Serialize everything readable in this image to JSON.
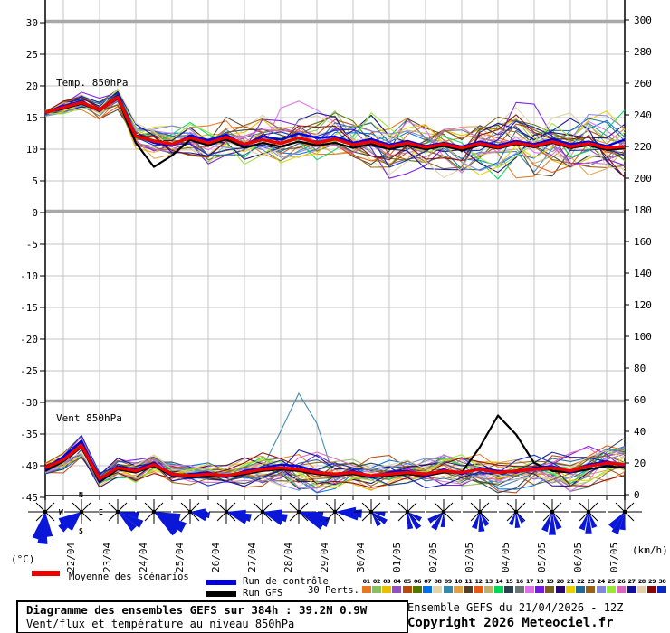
{
  "legend": {
    "mean_label": "Moyenne des scénarios",
    "control_label": "Run de contrôle",
    "gfs_label": "Run GFS",
    "perts_label": "30 Perts.",
    "members": [
      {
        "id": "01",
        "color": "#e87820"
      },
      {
        "id": "02",
        "color": "#88c060"
      },
      {
        "id": "03",
        "color": "#e8c000"
      },
      {
        "id": "04",
        "color": "#9050c0"
      },
      {
        "id": "05",
        "color": "#b84810"
      },
      {
        "id": "06",
        "color": "#507800"
      },
      {
        "id": "07",
        "color": "#0070e8"
      },
      {
        "id": "08",
        "color": "#e0d4a8"
      },
      {
        "id": "09",
        "color": "#3888a8"
      },
      {
        "id": "10",
        "color": "#e0a048"
      },
      {
        "id": "11",
        "color": "#504028"
      },
      {
        "id": "12",
        "color": "#e85810"
      },
      {
        "id": "13",
        "color": "#c0b070"
      },
      {
        "id": "14",
        "color": "#00d858"
      },
      {
        "id": "15",
        "color": "#2a4050"
      },
      {
        "id": "16",
        "color": "#687870"
      },
      {
        "id": "17",
        "color": "#e070e8"
      },
      {
        "id": "18",
        "color": "#7818e8"
      },
      {
        "id": "19",
        "color": "#786020"
      },
      {
        "id": "20",
        "color": "#280870"
      },
      {
        "id": "21",
        "color": "#e8d000"
      },
      {
        "id": "22",
        "color": "#206898"
      },
      {
        "id": "23",
        "color": "#986018"
      },
      {
        "id": "24",
        "color": "#8088e0"
      },
      {
        "id": "25",
        "color": "#98e838"
      },
      {
        "id": "26",
        "color": "#d868c0"
      },
      {
        "id": "27",
        "color": "#101098"
      },
      {
        "id": "28",
        "color": "#e0d0a8"
      },
      {
        "id": "29",
        "color": "#880808"
      },
      {
        "id": "30",
        "color": "#0828c0"
      }
    ]
  },
  "title_box": {
    "line1": "Diagramme des ensembles GEFS sur 384h : 39.2N 0.9W",
    "line2": "Vent/flux et température au niveau 850hPa"
  },
  "info_box": {
    "line1": "Ensemble GEFS du 21/04/2026 - 12Z",
    "line2": "Copyright 2026 Meteociel.fr"
  },
  "colors": {
    "mean": "#ee0000",
    "control": "#0000e0",
    "gfs": "#000000",
    "arrow": "#0a16d8",
    "grid": "#c6c6c6",
    "grid_major": "#a8a8a8",
    "frame": "#000000"
  },
  "chart_data": {
    "type": "line",
    "title": "Diagramme des ensembles GEFS sur 384h : 39.2N 0.9W",
    "panels": [
      {
        "label": "Temp. 850hPa",
        "unit": "(°C)"
      },
      {
        "label": "Vent 850hPa",
        "unit": "(km/h)"
      }
    ],
    "left_axis": {
      "unit": "(°C)",
      "ticks": [
        30,
        25,
        20,
        15,
        10,
        5,
        0,
        -5,
        -10,
        -15,
        -20,
        -25,
        -30,
        -35,
        -40,
        -45
      ]
    },
    "right_axis": {
      "unit": "(km/h)",
      "ticks": [
        300,
        280,
        260,
        240,
        220,
        200,
        180,
        160,
        140,
        120,
        100,
        80,
        60,
        40,
        20,
        0
      ]
    },
    "x_tick_labels": [
      "22/04",
      "23/04",
      "24/04",
      "25/04",
      "26/04",
      "27/04",
      "28/04",
      "29/04",
      "30/04",
      "01/05",
      "02/05",
      "03/05",
      "04/05",
      "05/05",
      "06/05",
      "07/05"
    ],
    "time": {
      "start": "21/04 12Z",
      "step_hours": 12,
      "points": 33
    },
    "series": {
      "temp_mean": [
        15.8,
        16.6,
        17.4,
        16.2,
        18.2,
        12.0,
        11.3,
        10.8,
        11.8,
        11.0,
        11.9,
        10.8,
        11.5,
        10.9,
        11.8,
        11.0,
        11.6,
        10.7,
        11.2,
        10.4,
        11.0,
        10.3,
        10.8,
        10.2,
        10.9,
        10.3,
        11.0,
        10.5,
        11.2,
        10.4,
        10.9,
        10.2,
        10.4
      ],
      "temp_control": [
        15.8,
        16.8,
        17.6,
        16.0,
        18.4,
        12.2,
        11.0,
        10.5,
        12.2,
        11.4,
        12.3,
        10.6,
        12.0,
        11.5,
        12.5,
        11.8,
        12.0,
        11.0,
        11.6,
        10.7,
        11.3,
        10.5,
        11.0,
        10.4,
        11.2,
        10.6,
        11.3,
        10.8,
        11.6,
        10.8,
        11.2,
        10.5,
        11.5
      ],
      "temp_gfs": [
        15.8,
        16.4,
        17.2,
        16.1,
        18.0,
        11.0,
        7.2,
        9.0,
        11.5,
        10.6,
        11.6,
        10.2,
        11.0,
        10.4,
        11.2,
        10.6,
        11.0,
        10.2,
        10.8,
        10.0,
        10.6,
        10.0,
        10.5,
        9.8,
        10.6,
        10.1,
        10.8,
        10.3,
        11.0,
        10.2,
        10.6,
        9.9,
        10.1
      ],
      "temp_spread": [
        0.4,
        0.8,
        1.0,
        1.3,
        1.5,
        1.8,
        2.0,
        2.2,
        2.2,
        2.3,
        2.3,
        2.4,
        2.5,
        2.6,
        2.8,
        3.0,
        3.0,
        3.0,
        3.2,
        3.2,
        3.4,
        3.4,
        3.5,
        3.5,
        3.6,
        3.6,
        3.7,
        3.7,
        3.8,
        3.8,
        3.9,
        3.9,
        4.0
      ],
      "wind_mean": [
        17,
        22,
        31,
        10,
        17,
        15,
        19,
        13,
        12,
        13,
        12,
        14,
        16,
        17,
        16,
        14,
        13,
        14,
        12,
        13,
        14,
        13,
        15,
        14,
        16,
        14,
        15,
        16,
        17,
        15,
        18,
        20,
        19
      ],
      "wind_control": [
        16,
        24,
        34,
        9,
        18,
        16,
        20,
        12,
        13,
        14,
        11,
        15,
        17,
        19,
        18,
        15,
        12,
        15,
        11,
        14,
        15,
        12,
        16,
        13,
        17,
        15,
        14,
        17,
        18,
        14,
        19,
        21,
        18
      ],
      "wind_gfs": [
        15,
        21,
        30,
        8,
        16,
        14,
        18,
        12,
        11,
        12,
        11,
        13,
        15,
        16,
        15,
        13,
        12,
        13,
        11,
        12,
        13,
        12,
        14,
        14,
        30,
        50,
        38,
        20,
        15,
        14,
        16,
        18,
        17
      ],
      "wind_spread": [
        3,
        5,
        8,
        4,
        5,
        5,
        5,
        5,
        5,
        6,
        6,
        7,
        8,
        9,
        10,
        9,
        8,
        7,
        7,
        7,
        7,
        7,
        7,
        8,
        8,
        8,
        8,
        8,
        9,
        9,
        9,
        10,
        10
      ]
    },
    "anomalies": [
      {
        "series": "wind",
        "member": 9,
        "points": {
          "13": 40,
          "14": 64,
          "15": 45
        }
      },
      {
        "series": "temp",
        "member": 17,
        "points": {
          "13": 16.5,
          "14": 17.6,
          "15": 16.2
        }
      }
    ],
    "compass": {
      "n": "N",
      "e": "E",
      "s": "S",
      "w": "W"
    },
    "wind_roses": [
      {
        "angle": 95,
        "len": 36,
        "fan": 26
      },
      {
        "angle": 140,
        "len": 30,
        "fan": 30
      },
      {
        "angle": 28,
        "len": 30,
        "fan": 36
      },
      {
        "angle": 28,
        "len": 38,
        "fan": 30
      },
      {
        "angle": 10,
        "len": 22,
        "fan": 26
      },
      {
        "angle": 14,
        "len": 28,
        "fan": 22
      },
      {
        "angle": 15,
        "len": 28,
        "fan": 26
      },
      {
        "angle": 20,
        "len": 35,
        "fan": 22
      },
      {
        "angle": 4,
        "len": 30,
        "fan": 16
      },
      {
        "angle": 35,
        "len": 20,
        "fan": 48
      },
      {
        "angle": 55,
        "len": 22,
        "fan": 50
      },
      {
        "angle": 120,
        "len": 22,
        "fan": 55
      },
      {
        "angle": 85,
        "len": 22,
        "fan": 48
      },
      {
        "angle": 85,
        "len": 18,
        "fan": 55
      },
      {
        "angle": 90,
        "len": 26,
        "fan": 45
      },
      {
        "angle": 90,
        "len": 24,
        "fan": 42
      },
      {
        "angle": 115,
        "len": 26,
        "fan": 36
      }
    ]
  }
}
